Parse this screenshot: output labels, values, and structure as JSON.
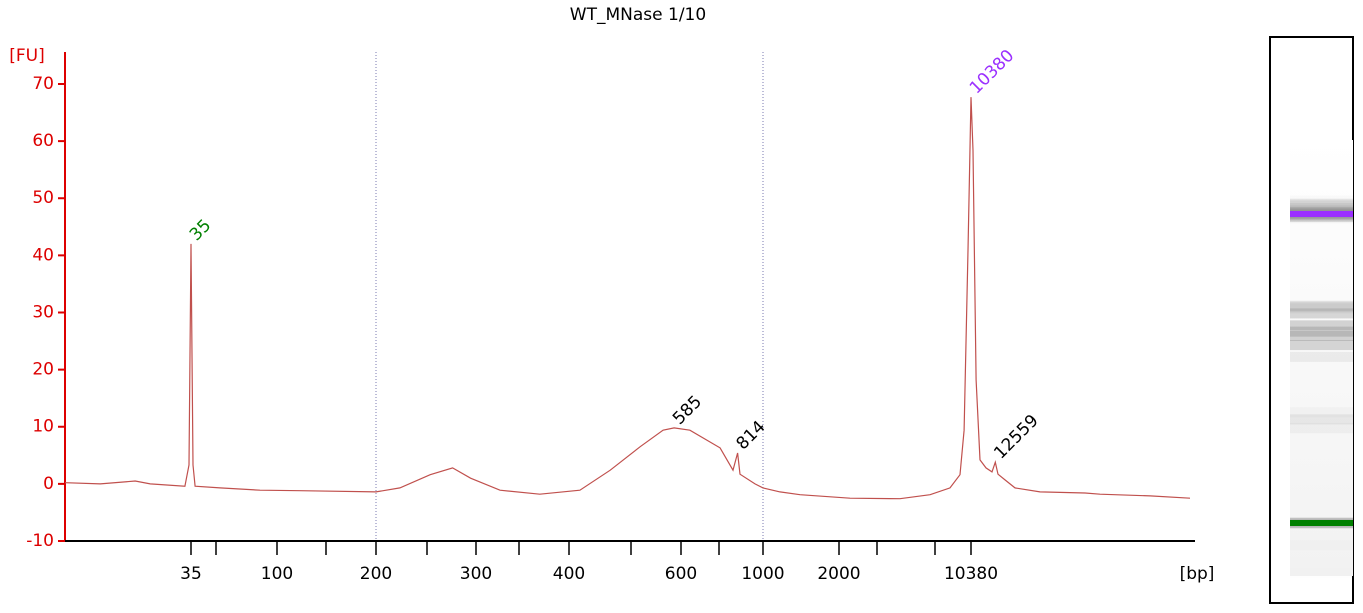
{
  "chart_data": {
    "type": "line",
    "title": "WT_MNase 1/10",
    "y_label": "[FU]",
    "x_label": "[bp]",
    "x_scale": "log",
    "xlim": [
      8,
      60000
    ],
    "ylim": [
      -10,
      75.6
    ],
    "yticks": [
      -10,
      0,
      10,
      20,
      30,
      40,
      50,
      60,
      70
    ],
    "xticks": [
      35,
      100,
      200,
      300,
      400,
      600,
      1000,
      2000,
      10380
    ],
    "minor_xticks": [
      50,
      150,
      250,
      350,
      500,
      700,
      3000,
      7000
    ],
    "markers": [
      200,
      1000
    ],
    "color": "#c0504d",
    "axis_color": "#dd0000",
    "x": [
      8,
      12.1,
      18.2,
      21.7,
      32.6,
      34.2,
      35,
      36.0,
      37.1,
      52.3,
      82.4,
      121,
      200,
      222,
      253,
      275,
      294,
      327,
      370,
      416,
      464,
      517,
      562,
      585,
      622,
      706,
      784,
      814,
      830,
      937,
      1000,
      1168,
      1402,
      2249,
      4200,
      6520,
      8250,
      9200,
      9620,
      10040,
      10380,
      10540,
      10800,
      11140,
      11670,
      12240,
      12559,
      12820,
      13550,
      14650,
      17820,
      25360,
      28500,
      42200,
      57700
    ],
    "values": [
      0.2,
      0,
      0.5,
      0,
      -0.4,
      3.3,
      42,
      3.3,
      -0.4,
      -0.7,
      -1.1,
      -1.2,
      -1.4,
      -0.7,
      1.6,
      2.8,
      1.0,
      -1.1,
      -1.8,
      -1.1,
      2.4,
      6.5,
      9.4,
      9.8,
      9.4,
      6.3,
      2.4,
      5.4,
      1.7,
      0,
      -0.7,
      -1.4,
      -1.9,
      -2.5,
      -2.6,
      -1.9,
      -0.7,
      1.6,
      9.4,
      40.9,
      67.7,
      58.4,
      18.2,
      4.2,
      2.8,
      2.1,
      3.8,
      1.7,
      0.7,
      -0.7,
      -1.4,
      -1.6,
      -1.8,
      -2.1,
      -2.5
    ],
    "peaks": [
      {
        "label": "35",
        "x": 35,
        "y": 42,
        "color": "#008000"
      },
      {
        "label": "585",
        "x": 585,
        "y": 9.8,
        "color": "#000000"
      },
      {
        "label": "814",
        "x": 814,
        "y": 5.4,
        "color": "#000000"
      },
      {
        "label": "10380",
        "x": 10380,
        "y": 67.7,
        "color": "#9b30ff"
      },
      {
        "label": "12559",
        "x": 12559,
        "y": 3.8,
        "color": "#000000"
      }
    ]
  }
}
